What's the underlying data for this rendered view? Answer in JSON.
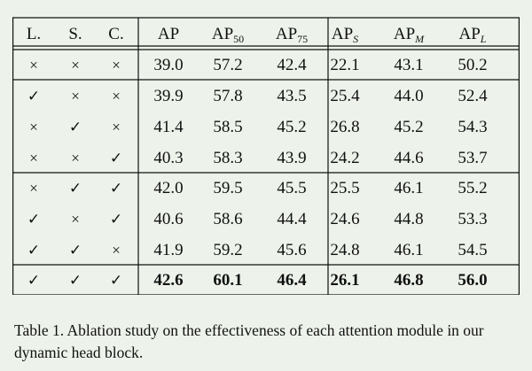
{
  "table": {
    "headers": [
      {
        "main": "L.",
        "sub": ""
      },
      {
        "main": "S.",
        "sub": ""
      },
      {
        "main": "C.",
        "sub": ""
      },
      {
        "main": "AP",
        "sub": ""
      },
      {
        "main": "AP",
        "sub": "50"
      },
      {
        "main": "AP",
        "sub": "75"
      },
      {
        "main": "AP",
        "sub": "S"
      },
      {
        "main": "AP",
        "sub": "M"
      },
      {
        "main": "AP",
        "sub": "L"
      }
    ],
    "rows": [
      {
        "L": "×",
        "S": "×",
        "C": "×",
        "AP": "39.0",
        "AP50": "57.2",
        "AP75": "42.4",
        "APS": "22.1",
        "APM": "43.1",
        "APL": "50.2",
        "bold": false
      },
      {
        "L": "✓",
        "S": "×",
        "C": "×",
        "AP": "39.9",
        "AP50": "57.8",
        "AP75": "43.5",
        "APS": "25.4",
        "APM": "44.0",
        "APL": "52.4",
        "bold": false
      },
      {
        "L": "×",
        "S": "✓",
        "C": "×",
        "AP": "41.4",
        "AP50": "58.5",
        "AP75": "45.2",
        "APS": "26.8",
        "APM": "45.2",
        "APL": "54.3",
        "bold": false
      },
      {
        "L": "×",
        "S": "×",
        "C": "✓",
        "AP": "40.3",
        "AP50": "58.3",
        "AP75": "43.9",
        "APS": "24.2",
        "APM": "44.6",
        "APL": "53.7",
        "bold": false
      },
      {
        "L": "×",
        "S": "✓",
        "C": "✓",
        "AP": "42.0",
        "AP50": "59.5",
        "AP75": "45.5",
        "APS": "25.5",
        "APM": "46.1",
        "APL": "55.2",
        "bold": false
      },
      {
        "L": "✓",
        "S": "×",
        "C": "✓",
        "AP": "40.6",
        "AP50": "58.6",
        "AP75": "44.4",
        "APS": "24.6",
        "APM": "44.8",
        "APL": "53.3",
        "bold": false
      },
      {
        "L": "✓",
        "S": "✓",
        "C": "×",
        "AP": "41.9",
        "AP50": "59.2",
        "AP75": "45.6",
        "APS": "24.8",
        "APM": "46.1",
        "APL": "54.5",
        "bold": false
      },
      {
        "L": "✓",
        "S": "✓",
        "C": "✓",
        "AP": "42.6",
        "AP50": "60.1",
        "AP75": "46.4",
        "APS": "26.1",
        "APM": "46.8",
        "APL": "56.0",
        "bold": true
      }
    ]
  },
  "caption": "Table 1. Ablation study on the effectiveness of each attention module in our dynamic head block.",
  "colors": {
    "background": "#edf3ea",
    "text": "#111111"
  }
}
